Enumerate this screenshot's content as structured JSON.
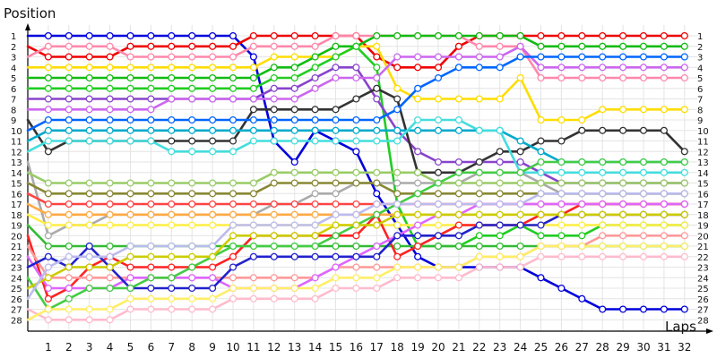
{
  "chart_data": {
    "type": "line",
    "ylabel": "Position",
    "xlabel": "Laps",
    "x": [
      0,
      1,
      2,
      3,
      4,
      5,
      6,
      7,
      8,
      9,
      10,
      11,
      12,
      13,
      14,
      15,
      16,
      17,
      18,
      19,
      20,
      21,
      22,
      23,
      24,
      25,
      26,
      27,
      28,
      29,
      30,
      31,
      32
    ],
    "x_ticks": [
      "1",
      "2",
      "3",
      "4",
      "5",
      "6",
      "7",
      "8",
      "9",
      "10",
      "11",
      "12",
      "13",
      "14",
      "15",
      "16",
      "17",
      "18",
      "19",
      "20",
      "21",
      "22",
      "23",
      "24",
      "25",
      "26",
      "27",
      "28",
      "29",
      "30",
      "31",
      "32"
    ],
    "y_ticks": [
      "1",
      "2",
      "3",
      "4",
      "5",
      "6",
      "7",
      "8",
      "9",
      "10",
      "11",
      "12",
      "13",
      "14",
      "15",
      "16",
      "17",
      "18",
      "19",
      "20",
      "21",
      "22",
      "23",
      "24",
      "25",
      "26",
      "27",
      "28"
    ],
    "ylim": [
      1,
      28
    ],
    "xlim": [
      0,
      32
    ],
    "y_inverted": true,
    "grid": true,
    "legend": "none",
    "series": [
      {
        "color": "#0000dd",
        "values": [
          1,
          1,
          1,
          1,
          1,
          1,
          1,
          1,
          1,
          1,
          1,
          3,
          11,
          13,
          10,
          11,
          12,
          16,
          19,
          22,
          23,
          23,
          23,
          23,
          23,
          24,
          25,
          26,
          27,
          27,
          27,
          27,
          27
        ]
      },
      {
        "color": "#ee0000",
        "values": [
          2,
          3,
          3,
          3,
          3,
          2,
          2,
          2,
          2,
          2,
          2,
          1,
          1,
          1,
          1,
          1,
          1,
          3,
          4,
          4,
          4,
          2,
          1,
          1,
          1,
          1,
          1,
          1,
          1,
          1,
          1,
          1,
          1
        ]
      },
      {
        "color": "#ff88aa",
        "values": [
          3,
          2,
          2,
          2,
          2,
          3,
          3,
          3,
          3,
          3,
          3,
          2,
          2,
          2,
          2,
          1,
          1,
          1,
          1,
          1,
          1,
          1,
          2,
          2,
          2,
          5,
          5,
          5,
          5,
          5,
          5,
          5,
          5
        ]
      },
      {
        "color": "#ffdd00",
        "values": [
          4,
          4,
          4,
          4,
          4,
          4,
          4,
          4,
          4,
          4,
          4,
          4,
          3,
          3,
          3,
          3,
          2,
          2,
          6,
          7,
          7,
          7,
          7,
          7,
          5,
          9,
          9,
          9,
          8,
          8,
          8,
          8,
          8
        ]
      },
      {
        "color": "#11bb11",
        "values": [
          5,
          5,
          5,
          5,
          5,
          5,
          5,
          5,
          5,
          5,
          5,
          5,
          4,
          4,
          3,
          2,
          2,
          1,
          1,
          1,
          1,
          1,
          1,
          1,
          1,
          2,
          2,
          2,
          2,
          2,
          2,
          2,
          2
        ]
      },
      {
        "color": "#22cc22",
        "values": [
          6,
          6,
          6,
          6,
          6,
          6,
          6,
          6,
          6,
          6,
          6,
          6,
          5,
          5,
          4,
          3,
          2,
          4,
          17,
          21,
          21,
          21,
          20,
          20,
          19,
          20,
          20,
          20,
          19,
          19,
          19,
          19,
          19
        ]
      },
      {
        "color": "#8844cc",
        "values": [
          7,
          7,
          7,
          7,
          7,
          7,
          7,
          7,
          7,
          7,
          7,
          7,
          6,
          6,
          5,
          4,
          4,
          7,
          10,
          12,
          13,
          13,
          13,
          13,
          13,
          14,
          15,
          15,
          15,
          15,
          15,
          15,
          15
        ]
      },
      {
        "color": "#cc66ee",
        "values": [
          8,
          8,
          8,
          8,
          8,
          8,
          8,
          7,
          7,
          7,
          7,
          7,
          7,
          7,
          6,
          5,
          5,
          5,
          3,
          3,
          3,
          3,
          3,
          3,
          2,
          4,
          4,
          4,
          4,
          4,
          4,
          4,
          4
        ]
      },
      {
        "color": "#333333",
        "values": [
          9,
          12,
          11,
          11,
          11,
          11,
          11,
          11,
          11,
          11,
          11,
          8,
          8,
          8,
          8,
          8,
          7,
          6,
          7,
          14,
          14,
          14,
          13,
          12,
          12,
          11,
          11,
          10,
          10,
          10,
          10,
          10,
          12
        ]
      },
      {
        "color": "#0066ff",
        "values": [
          10,
          9,
          9,
          9,
          9,
          9,
          9,
          9,
          9,
          9,
          9,
          9,
          9,
          9,
          9,
          9,
          9,
          9,
          8,
          6,
          5,
          4,
          4,
          4,
          3,
          3,
          3,
          3,
          3,
          3,
          3,
          3,
          3
        ]
      },
      {
        "color": "#00aacc",
        "values": [
          11,
          10,
          10,
          10,
          10,
          10,
          10,
          10,
          10,
          10,
          10,
          10,
          10,
          10,
          10,
          10,
          10,
          10,
          10,
          10,
          10,
          10,
          10,
          10,
          11,
          12,
          13,
          13,
          13,
          13,
          13,
          13,
          13
        ]
      },
      {
        "color": "#44dddd",
        "values": [
          12,
          11,
          11,
          11,
          11,
          11,
          11,
          12,
          12,
          12,
          12,
          11,
          11,
          11,
          11,
          11,
          11,
          11,
          11,
          9,
          9,
          9,
          10,
          10,
          14,
          14,
          14,
          14,
          14,
          14,
          14,
          14,
          14
        ]
      },
      {
        "color": "#aaaaaa",
        "values": [
          13,
          20,
          19,
          19,
          18,
          18,
          18,
          18,
          18,
          18,
          18,
          18,
          17,
          17,
          16,
          16,
          15,
          15,
          15,
          15,
          15,
          15,
          14,
          14,
          14,
          15,
          16,
          16,
          16,
          16,
          16,
          16,
          16
        ]
      },
      {
        "color": "#99cc66",
        "values": [
          14,
          15,
          15,
          15,
          15,
          15,
          15,
          15,
          15,
          15,
          15,
          15,
          14,
          14,
          14,
          14,
          14,
          14,
          14,
          14,
          15,
          15,
          15,
          15,
          15,
          15,
          15,
          15,
          15,
          15,
          15,
          15,
          15
        ]
      },
      {
        "color": "#888833",
        "values": [
          15,
          16,
          16,
          16,
          16,
          16,
          16,
          16,
          16,
          16,
          16,
          16,
          15,
          15,
          15,
          15,
          15,
          15,
          16,
          16,
          16,
          16,
          16,
          16,
          16,
          16,
          16,
          16,
          16,
          16,
          16,
          16,
          16
        ]
      },
      {
        "color": "#ff4444",
        "values": [
          16,
          17,
          17,
          17,
          17,
          17,
          17,
          17,
          17,
          17,
          17,
          17,
          17,
          17,
          17,
          17,
          17,
          17,
          17,
          17,
          17,
          17,
          17,
          17,
          17,
          17,
          17,
          17,
          17,
          17,
          17,
          17,
          17
        ]
      },
      {
        "color": "#ffaa44",
        "values": [
          17,
          18,
          18,
          18,
          18,
          18,
          18,
          18,
          18,
          18,
          18,
          18,
          18,
          18,
          18,
          18,
          18,
          18,
          18,
          18,
          18,
          18,
          18,
          18,
          18,
          18,
          18,
          18,
          18,
          18,
          18,
          18,
          18
        ]
      },
      {
        "color": "#ffee44",
        "values": [
          18,
          19,
          19,
          19,
          19,
          19,
          19,
          19,
          19,
          19,
          19,
          19,
          19,
          19,
          19,
          19,
          19,
          19,
          19,
          19,
          19,
          19,
          19,
          19,
          19,
          19,
          19,
          19,
          19,
          19,
          19,
          19,
          19
        ]
      },
      {
        "color": "#33bb33",
        "values": [
          19,
          21,
          21,
          21,
          21,
          21,
          21,
          21,
          21,
          21,
          21,
          21,
          21,
          21,
          21,
          21,
          21,
          21,
          21,
          21,
          21,
          21,
          21,
          21,
          21,
          21,
          21,
          21,
          21,
          21,
          21,
          21,
          21
        ]
      },
      {
        "color": "#ff2222",
        "values": [
          20,
          26,
          25,
          23,
          22,
          23,
          23,
          23,
          23,
          23,
          22,
          20,
          20,
          20,
          20,
          20,
          20,
          18,
          22,
          21,
          20,
          19,
          19,
          19,
          19,
          18,
          18,
          17,
          17,
          17,
          17,
          17,
          17
        ]
      },
      {
        "color": "#ff9999",
        "values": [
          21,
          24,
          24,
          24,
          24,
          24,
          24,
          24,
          24,
          24,
          24,
          24,
          24,
          24,
          24,
          23,
          23,
          23,
          23,
          23,
          23,
          23,
          22,
          22,
          22,
          21,
          21,
          21,
          20,
          20,
          20,
          20,
          20
        ]
      },
      {
        "color": "#dd66ff",
        "values": [
          22,
          25,
          25,
          25,
          25,
          24,
          24,
          24,
          24,
          24,
          25,
          25,
          25,
          25,
          24,
          23,
          22,
          21,
          20,
          19,
          18,
          18,
          17,
          17,
          17,
          17,
          17,
          17,
          17,
          17,
          17,
          17,
          17
        ]
      },
      {
        "color": "#2222cc",
        "values": [
          23,
          22,
          23,
          21,
          23,
          25,
          25,
          25,
          25,
          25,
          23,
          22,
          22,
          22,
          22,
          22,
          22,
          22,
          20,
          20,
          20,
          20,
          19,
          19,
          19,
          19,
          18,
          18,
          18,
          18,
          18,
          18,
          18
        ]
      },
      {
        "color": "#44cc44",
        "values": [
          24,
          27,
          26,
          25,
          25,
          25,
          24,
          24,
          23,
          22,
          21,
          21,
          21,
          21,
          21,
          20,
          19,
          18,
          17,
          16,
          15,
          14,
          14,
          14,
          14,
          13,
          13,
          13,
          13,
          13,
          13,
          13,
          13
        ]
      },
      {
        "color": "#cccc00",
        "values": [
          25,
          24,
          23,
          23,
          23,
          22,
          22,
          22,
          22,
          22,
          20,
          20,
          20,
          20,
          20,
          19,
          19,
          19,
          18,
          18,
          18,
          18,
          18,
          18,
          18,
          18,
          18,
          18,
          18,
          18,
          18,
          18,
          18
        ]
      },
      {
        "color": "#bbbbee",
        "values": [
          26,
          23,
          22,
          22,
          22,
          21,
          21,
          21,
          21,
          21,
          19,
          19,
          19,
          19,
          19,
          18,
          18,
          17,
          17,
          17,
          17,
          17,
          17,
          17,
          17,
          16,
          16,
          16,
          16,
          16,
          16,
          16,
          16
        ]
      },
      {
        "color": "#ffbbcc",
        "values": [
          27,
          28,
          28,
          28,
          28,
          27,
          27,
          27,
          27,
          27,
          26,
          26,
          26,
          26,
          26,
          25,
          25,
          25,
          24,
          24,
          24,
          24,
          23,
          23,
          23,
          22,
          22,
          22,
          22,
          22,
          22,
          22,
          22
        ]
      },
      {
        "color": "#ffee66",
        "values": [
          28,
          27,
          27,
          27,
          27,
          26,
          26,
          26,
          26,
          26,
          25,
          25,
          25,
          25,
          25,
          24,
          24,
          24,
          23,
          23,
          23,
          23,
          22,
          22,
          22,
          21,
          21,
          21,
          21,
          21,
          21,
          21,
          21
        ]
      }
    ]
  }
}
